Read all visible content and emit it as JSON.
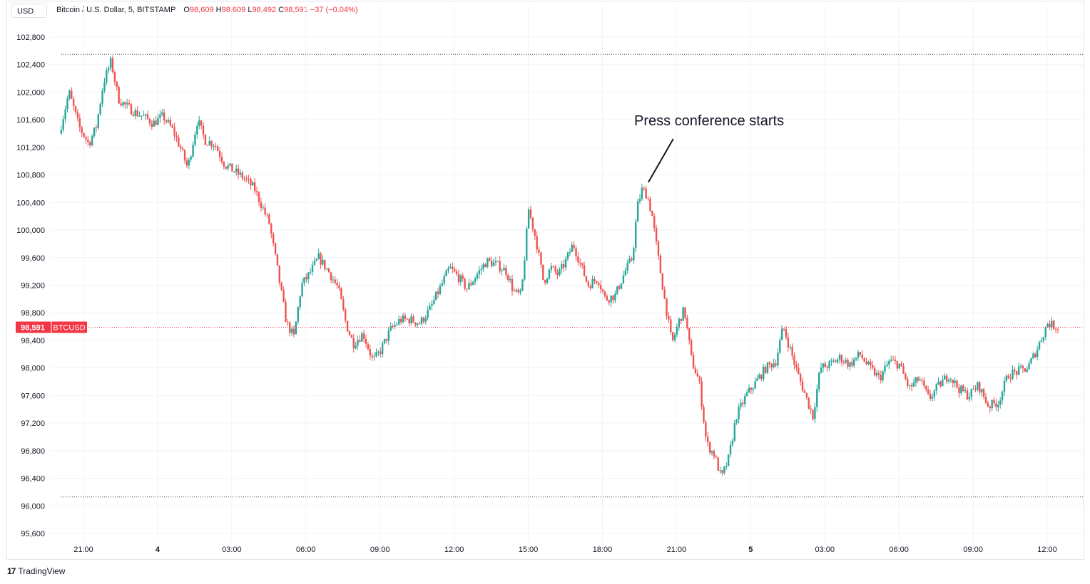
{
  "header": {
    "title": "Bitcoin / U.S. Dollar, 5, BITSTAMP",
    "o_label": "O",
    "o_value": "98,609",
    "h_label": "H",
    "h_value": "98,609",
    "l_label": "L",
    "l_value": "98,492",
    "c_label": "C",
    "c_value": "98,591",
    "change": "−37 (−0.04%)"
  },
  "currency_button": "USD",
  "branding": {
    "logo_mark": "17",
    "name": "TradingView"
  },
  "price_tag": {
    "value": "98,591",
    "symbol": "BTCUSD"
  },
  "annotation": "Press conference starts",
  "colors": {
    "up": "#26a69a",
    "down": "#ef5350",
    "grid": "#f0f3fa",
    "last_price": "#f23645"
  },
  "chart_data": {
    "type": "candlestick",
    "title": "Bitcoin / U.S. Dollar, 5, BITSTAMP",
    "ylim": [
      95500,
      103100
    ],
    "y_ticks": [
      "102,800",
      "102,400",
      "102,000",
      "101,600",
      "101,200",
      "100,800",
      "100,400",
      "100,000",
      "99,600",
      "99,200",
      "98,800",
      "98,400",
      "98,000",
      "97,600",
      "97,200",
      "96,800",
      "96,400",
      "96,000",
      "95,600"
    ],
    "y_tick_values": [
      102800,
      102400,
      102000,
      101600,
      101200,
      100800,
      100400,
      100000,
      99600,
      99200,
      98800,
      98400,
      98000,
      97600,
      97200,
      96800,
      96400,
      96000,
      95600
    ],
    "x_ticks": [
      "21:00",
      "4",
      "03:00",
      "06:00",
      "09:00",
      "12:00",
      "15:00",
      "18:00",
      "21:00",
      "5",
      "03:00",
      "06:00",
      "09:00",
      "12:00"
    ],
    "x_tick_hours": [
      21,
      24,
      27,
      30,
      33,
      36,
      39,
      42,
      45,
      48,
      51,
      54,
      57,
      60
    ],
    "x_range_hours": [
      19.8,
      61.2
    ],
    "last_price": 98591,
    "session_high_line": 102550,
    "session_low_line": 96130,
    "annotation_hour": 43.8,
    "price_path": [
      [
        20.1,
        101400
      ],
      [
        20.5,
        102000
      ],
      [
        20.9,
        101500
      ],
      [
        21.3,
        101250
      ],
      [
        21.6,
        101500
      ],
      [
        21.9,
        102150
      ],
      [
        22.2,
        102450
      ],
      [
        22.5,
        101900
      ],
      [
        22.8,
        101800
      ],
      [
        23.2,
        101700
      ],
      [
        23.5,
        101650
      ],
      [
        23.9,
        101550
      ],
      [
        24.3,
        101650
      ],
      [
        24.7,
        101450
      ],
      [
        25.0,
        101200
      ],
      [
        25.3,
        100900
      ],
      [
        25.7,
        101600
      ],
      [
        26.0,
        101300
      ],
      [
        26.4,
        101250
      ],
      [
        26.8,
        100950
      ],
      [
        27.2,
        100850
      ],
      [
        27.6,
        100750
      ],
      [
        28.0,
        100600
      ],
      [
        28.3,
        100350
      ],
      [
        28.6,
        100100
      ],
      [
        28.9,
        99500
      ],
      [
        29.3,
        98650
      ],
      [
        29.6,
        98450
      ],
      [
        29.9,
        99200
      ],
      [
        30.2,
        99350
      ],
      [
        30.6,
        99600
      ],
      [
        31.0,
        99400
      ],
      [
        31.4,
        99150
      ],
      [
        31.7,
        98650
      ],
      [
        32.0,
        98350
      ],
      [
        32.4,
        98500
      ],
      [
        32.8,
        98100
      ],
      [
        33.1,
        98250
      ],
      [
        33.5,
        98550
      ],
      [
        33.9,
        98700
      ],
      [
        34.3,
        98700
      ],
      [
        34.7,
        98650
      ],
      [
        35.1,
        98850
      ],
      [
        35.5,
        99150
      ],
      [
        35.9,
        99450
      ],
      [
        36.3,
        99300
      ],
      [
        36.6,
        99150
      ],
      [
        37.0,
        99350
      ],
      [
        37.4,
        99550
      ],
      [
        37.8,
        99500
      ],
      [
        38.2,
        99400
      ],
      [
        38.5,
        99100
      ],
      [
        38.8,
        99050
      ],
      [
        39.1,
        100300
      ],
      [
        39.4,
        99850
      ],
      [
        39.7,
        99250
      ],
      [
        40.0,
        99450
      ],
      [
        40.3,
        99350
      ],
      [
        40.6,
        99550
      ],
      [
        40.9,
        99800
      ],
      [
        41.2,
        99500
      ],
      [
        41.5,
        99200
      ],
      [
        41.9,
        99300
      ],
      [
        42.2,
        99000
      ],
      [
        42.6,
        99050
      ],
      [
        43.0,
        99400
      ],
      [
        43.3,
        99600
      ],
      [
        43.5,
        100350
      ],
      [
        43.7,
        100600
      ],
      [
        43.9,
        100500
      ],
      [
        44.1,
        100200
      ],
      [
        44.3,
        99700
      ],
      [
        44.6,
        99000
      ],
      [
        44.9,
        98350
      ],
      [
        45.2,
        98700
      ],
      [
        45.4,
        98850
      ],
      [
        45.7,
        98100
      ],
      [
        46.0,
        97800
      ],
      [
        46.3,
        96900
      ],
      [
        46.6,
        96750
      ],
      [
        46.9,
        96400
      ],
      [
        47.2,
        96700
      ],
      [
        47.5,
        97300
      ],
      [
        47.9,
        97600
      ],
      [
        48.3,
        97800
      ],
      [
        48.7,
        98000
      ],
      [
        49.1,
        98100
      ],
      [
        49.4,
        98600
      ],
      [
        49.7,
        98250
      ],
      [
        50.0,
        97900
      ],
      [
        50.3,
        97600
      ],
      [
        50.6,
        97300
      ],
      [
        50.9,
        98000
      ],
      [
        51.3,
        98050
      ],
      [
        51.7,
        98150
      ],
      [
        52.1,
        98050
      ],
      [
        52.5,
        98200
      ],
      [
        52.9,
        98000
      ],
      [
        53.3,
        97850
      ],
      [
        53.7,
        98100
      ],
      [
        54.1,
        98050
      ],
      [
        54.5,
        97700
      ],
      [
        54.9,
        97850
      ],
      [
        55.3,
        97550
      ],
      [
        55.7,
        97750
      ],
      [
        56.1,
        97900
      ],
      [
        56.5,
        97700
      ],
      [
        56.9,
        97600
      ],
      [
        57.3,
        97750
      ],
      [
        57.7,
        97450
      ],
      [
        58.1,
        97500
      ],
      [
        58.5,
        97900
      ],
      [
        58.9,
        97950
      ],
      [
        59.3,
        98000
      ],
      [
        59.7,
        98300
      ],
      [
        60.1,
        98650
      ],
      [
        60.5,
        98591
      ]
    ]
  }
}
